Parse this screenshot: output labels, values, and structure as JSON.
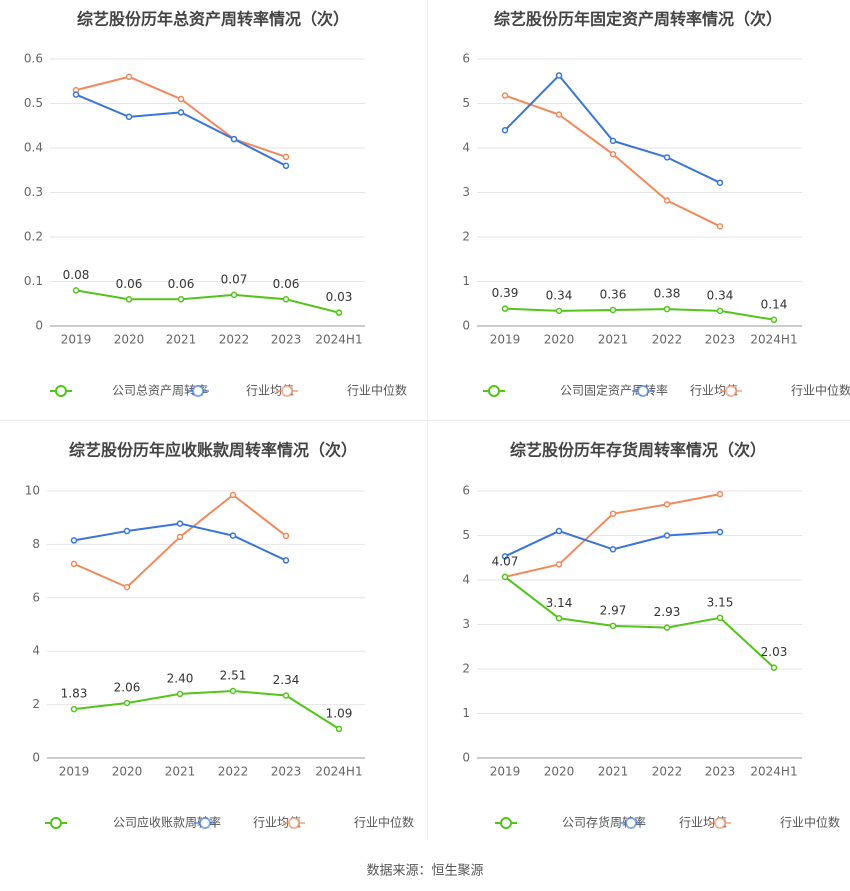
{
  "source": "数据来源：恒生聚源",
  "legend_avg": "行业均值",
  "legend_med": "行业中位数",
  "colors": {
    "company": "#52c41a",
    "average": "#3a75d9",
    "median": "#f08a5d",
    "grid": "#e6e6e6",
    "axis": "#999999",
    "tick_text": "#666666",
    "title": "#444444",
    "label_text": "#333333"
  },
  "chart_data": [
    {
      "type": "line",
      "title": "综艺股份历年总资产周转率情况（次）",
      "categories": [
        "2019",
        "2020",
        "2021",
        "2022",
        "2023",
        "2024H1"
      ],
      "yticks": [
        "0",
        "0.1",
        "0.2",
        "0.3",
        "0.4",
        "0.5",
        "0.6"
      ],
      "ylim": [
        0,
        0.6
      ],
      "series": [
        {
          "name": "公司总资产周转率",
          "role": "company",
          "values": [
            0.08,
            0.06,
            0.06,
            0.07,
            0.06,
            0.03
          ],
          "labels": [
            "0.08",
            "0.06",
            "0.06",
            "0.07",
            "0.06",
            "0.03"
          ]
        },
        {
          "name": "行业均值",
          "role": "average",
          "values": [
            0.52,
            0.47,
            0.48,
            0.42,
            0.36,
            null
          ]
        },
        {
          "name": "行业中位数",
          "role": "median",
          "values": [
            0.53,
            0.56,
            0.51,
            0.42,
            0.38,
            null
          ]
        }
      ]
    },
    {
      "type": "line",
      "title": "综艺股份历年固定资产周转率情况（次）",
      "categories": [
        "2019",
        "2020",
        "2021",
        "2022",
        "2023",
        "2024H1"
      ],
      "yticks": [
        "0",
        "1",
        "2",
        "3",
        "4",
        "5",
        "6"
      ],
      "ylim": [
        0,
        6
      ],
      "series": [
        {
          "name": "公司固定资产周转率",
          "role": "company",
          "values": [
            0.39,
            0.34,
            0.36,
            0.38,
            0.34,
            0.14
          ],
          "labels": [
            "0.39",
            "0.34",
            "0.36",
            "0.38",
            "0.34",
            "0.14"
          ]
        },
        {
          "name": "行业均值",
          "role": "average",
          "values": [
            4.4,
            5.63,
            4.16,
            3.79,
            3.22,
            null
          ]
        },
        {
          "name": "行业中位数",
          "role": "median",
          "values": [
            5.18,
            4.75,
            3.86,
            2.82,
            2.24,
            null
          ]
        }
      ]
    },
    {
      "type": "line",
      "title": "综艺股份历年应收账款周转率情况（次）",
      "categories": [
        "2019",
        "2020",
        "2021",
        "2022",
        "2023",
        "2024H1"
      ],
      "yticks": [
        "0",
        "2",
        "4",
        "6",
        "8",
        "10"
      ],
      "ylim": [
        0,
        10
      ],
      "series": [
        {
          "name": "公司应收账款周转率",
          "role": "company",
          "values": [
            1.83,
            2.06,
            2.4,
            2.51,
            2.34,
            1.09
          ],
          "labels": [
            "1.83",
            "2.06",
            "2.40",
            "2.51",
            "2.34",
            "1.09"
          ]
        },
        {
          "name": "行业均值",
          "role": "average",
          "values": [
            8.15,
            8.5,
            8.78,
            8.33,
            7.4,
            null
          ]
        },
        {
          "name": "行业中位数",
          "role": "median",
          "values": [
            7.27,
            6.4,
            8.28,
            9.85,
            8.32,
            null
          ]
        }
      ]
    },
    {
      "type": "line",
      "title": "综艺股份历年存货周转率情况（次）",
      "categories": [
        "2019",
        "2020",
        "2021",
        "2022",
        "2023",
        "2024H1"
      ],
      "yticks": [
        "0",
        "1",
        "2",
        "3",
        "4",
        "5",
        "6"
      ],
      "ylim": [
        0,
        6
      ],
      "series": [
        {
          "name": "公司存货周转率",
          "role": "company",
          "values": [
            4.07,
            3.14,
            2.97,
            2.93,
            3.15,
            2.03
          ],
          "labels": [
            "4.07",
            "3.14",
            "2.97",
            "2.93",
            "3.15",
            "2.03"
          ]
        },
        {
          "name": "行业均值",
          "role": "average",
          "values": [
            4.53,
            5.1,
            4.69,
            5.0,
            5.08,
            null
          ]
        },
        {
          "name": "行业中位数",
          "role": "median",
          "values": [
            4.07,
            4.35,
            5.49,
            5.7,
            5.93,
            null
          ]
        }
      ]
    }
  ]
}
